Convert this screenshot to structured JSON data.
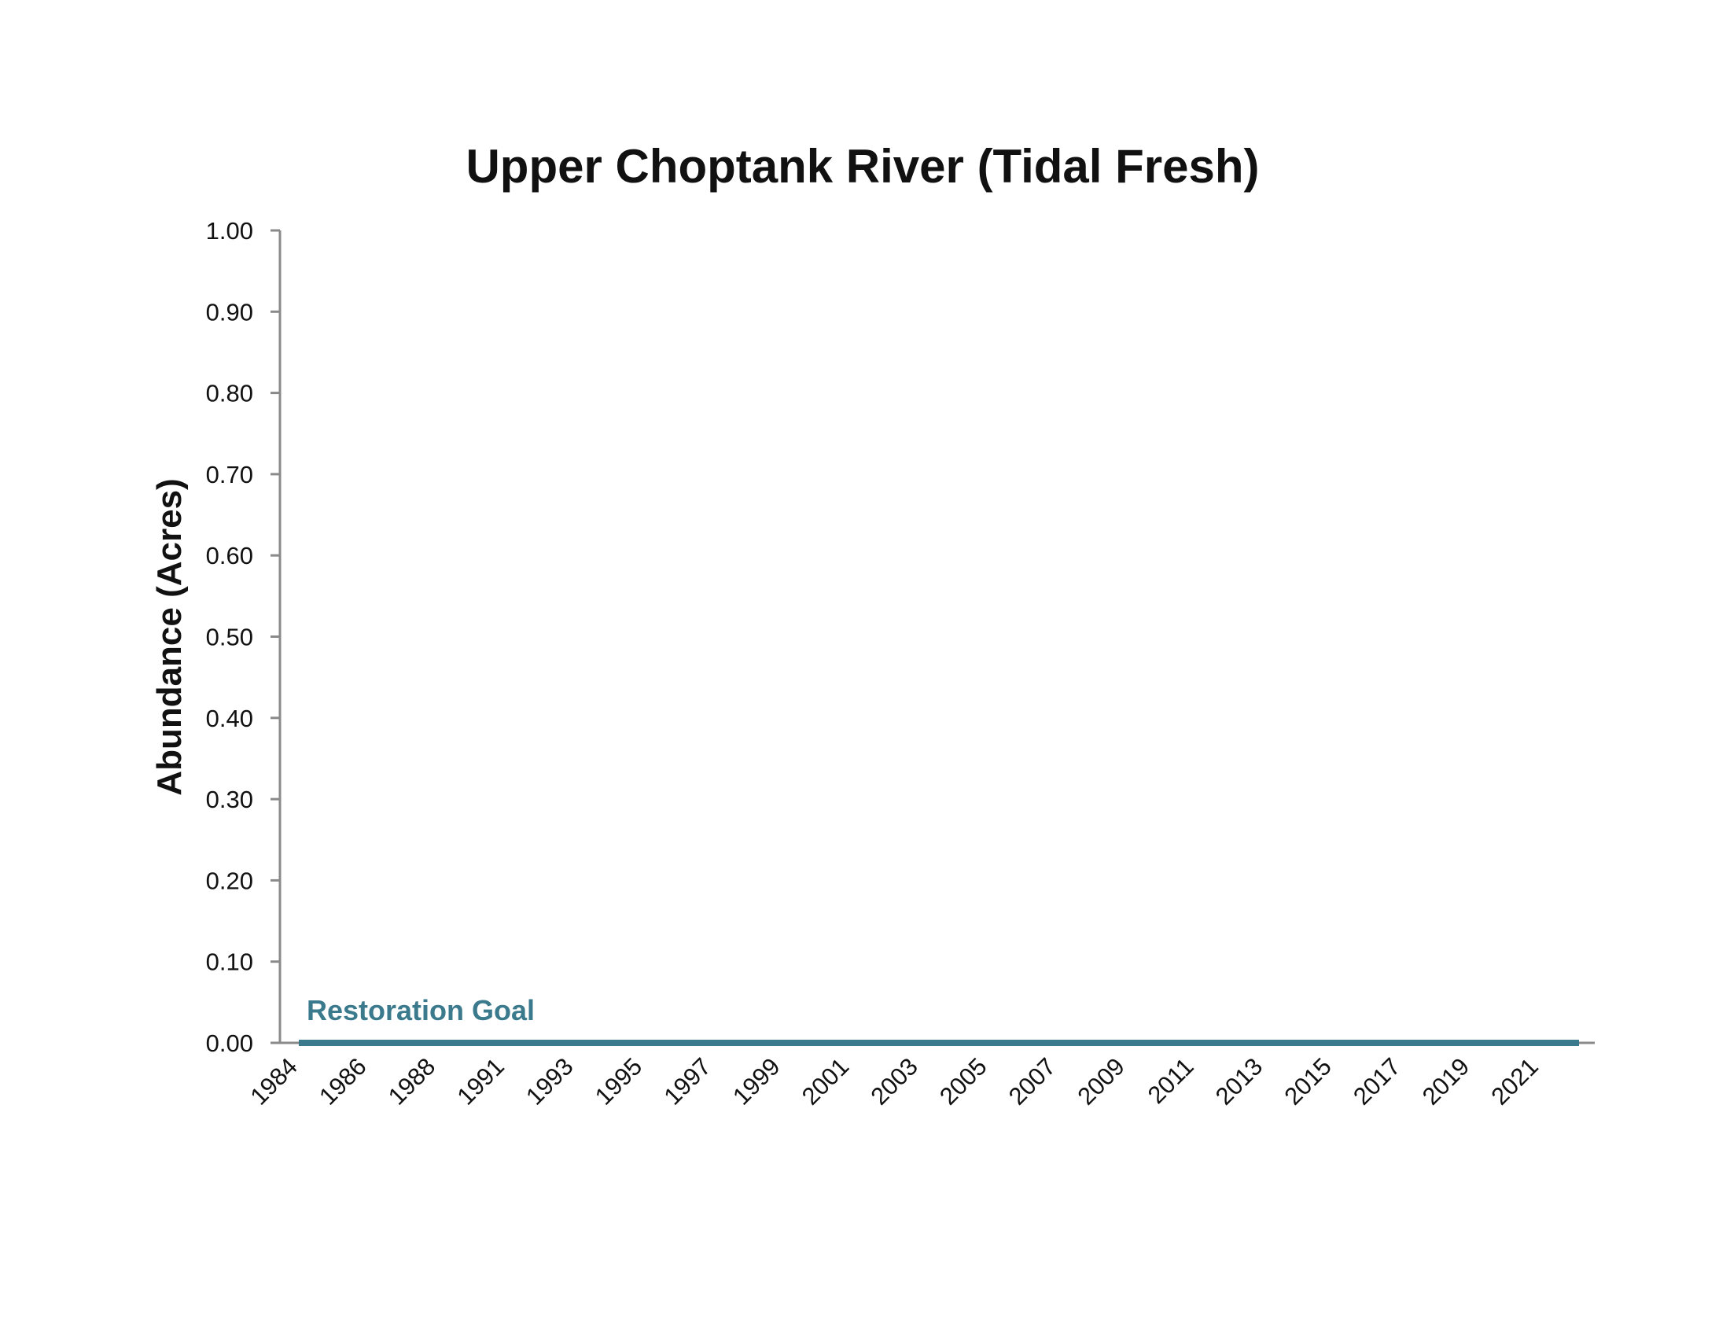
{
  "chart_data": {
    "type": "line",
    "title": "Upper Choptank River (Tidal Fresh)",
    "xlabel": "",
    "ylabel": "Abundance (Acres)",
    "ylim": [
      0,
      1
    ],
    "y_ticks": [
      "0.00",
      "0.10",
      "0.20",
      "0.30",
      "0.40",
      "0.50",
      "0.60",
      "0.70",
      "0.80",
      "0.90",
      "1.00"
    ],
    "x_tick_labels": [
      "1984",
      "1986",
      "1988",
      "1991",
      "1993",
      "1995",
      "1997",
      "1999",
      "2001",
      "2003",
      "2005",
      "2007",
      "2009",
      "2011",
      "2013",
      "2015",
      "2017",
      "2019",
      "2021"
    ],
    "grid": false,
    "series": [
      {
        "name": "Restoration Goal",
        "values": [
          0,
          0
        ],
        "x": [
          "1984",
          "2022"
        ],
        "color": "#3a7a8c"
      }
    ],
    "annotations": [
      {
        "text": "Restoration Goal",
        "color": "#3a7a8c"
      }
    ]
  }
}
